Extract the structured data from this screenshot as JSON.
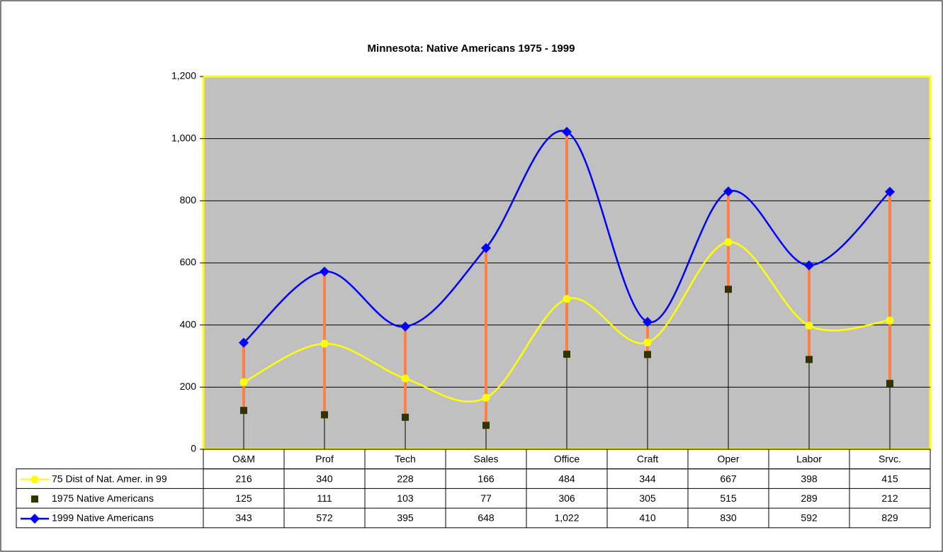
{
  "chart_data": {
    "type": "line",
    "title": "Minnesota: Native Americans 1975 - 1999",
    "categories": [
      "O&M",
      "Prof",
      "Tech",
      "Sales",
      "Office",
      "Craft",
      "Oper",
      "Labor",
      "Srvc."
    ],
    "series": [
      {
        "name": "75 Dist of Nat. Amer. in 99",
        "color": "#ffff00",
        "marker": "circle",
        "line": true,
        "values": [
          216,
          340,
          228,
          166,
          484,
          344,
          667,
          398,
          415
        ]
      },
      {
        "name": "1975 Native Americans",
        "color": "#333300",
        "marker": "square",
        "line": false,
        "values": [
          125,
          111,
          103,
          77,
          306,
          305,
          515,
          289,
          212
        ]
      },
      {
        "name": "1999 Native Americans",
        "color": "#0000ff",
        "marker": "diamond",
        "line": true,
        "values": [
          343,
          572,
          395,
          648,
          1022,
          410,
          830,
          592,
          829
        ],
        "value_labels": [
          "343",
          "572",
          "395",
          "648",
          "1,022",
          "410",
          "830",
          "592",
          "829"
        ]
      }
    ],
    "ylim": [
      0,
      1200
    ],
    "yticks": [
      0,
      200,
      400,
      600,
      800,
      {
        "value": 1000,
        "label": "1,000"
      },
      {
        "value": 1200,
        "label": "1,200"
      }
    ],
    "grid": true
  }
}
